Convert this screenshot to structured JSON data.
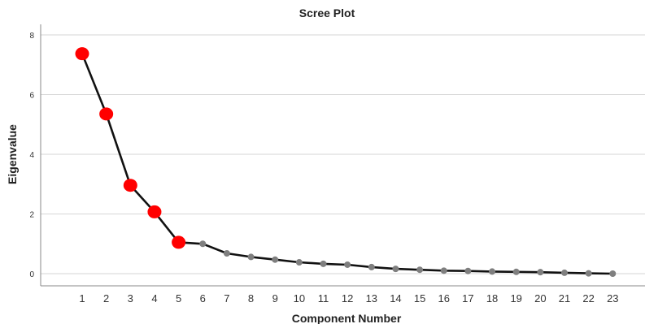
{
  "chart_data": {
    "type": "line",
    "title": "Scree Plot",
    "xlabel": "Component Number",
    "ylabel": "Eigenvalue",
    "ylim": [
      0,
      8
    ],
    "yticks": [
      0,
      2,
      4,
      6,
      8
    ],
    "grid": true,
    "categories": [
      "1",
      "2",
      "3",
      "4",
      "5",
      "6",
      "7",
      "8",
      "9",
      "10",
      "11",
      "12",
      "13",
      "14",
      "15",
      "16",
      "17",
      "18",
      "19",
      "20",
      "21",
      "22",
      "23"
    ],
    "series": [
      {
        "values": [
          7.37,
          5.35,
          2.96,
          2.07,
          1.05,
          1.0,
          0.68,
          0.56,
          0.47,
          0.38,
          0.33,
          0.3,
          0.22,
          0.16,
          0.13,
          0.1,
          0.09,
          0.07,
          0.06,
          0.05,
          0.03,
          0.01,
          0.0
        ],
        "line_color": "#111111",
        "highlight_color": "#ff0000",
        "marker_color": "#7f7f7f",
        "highlighted_count": 5
      }
    ]
  }
}
